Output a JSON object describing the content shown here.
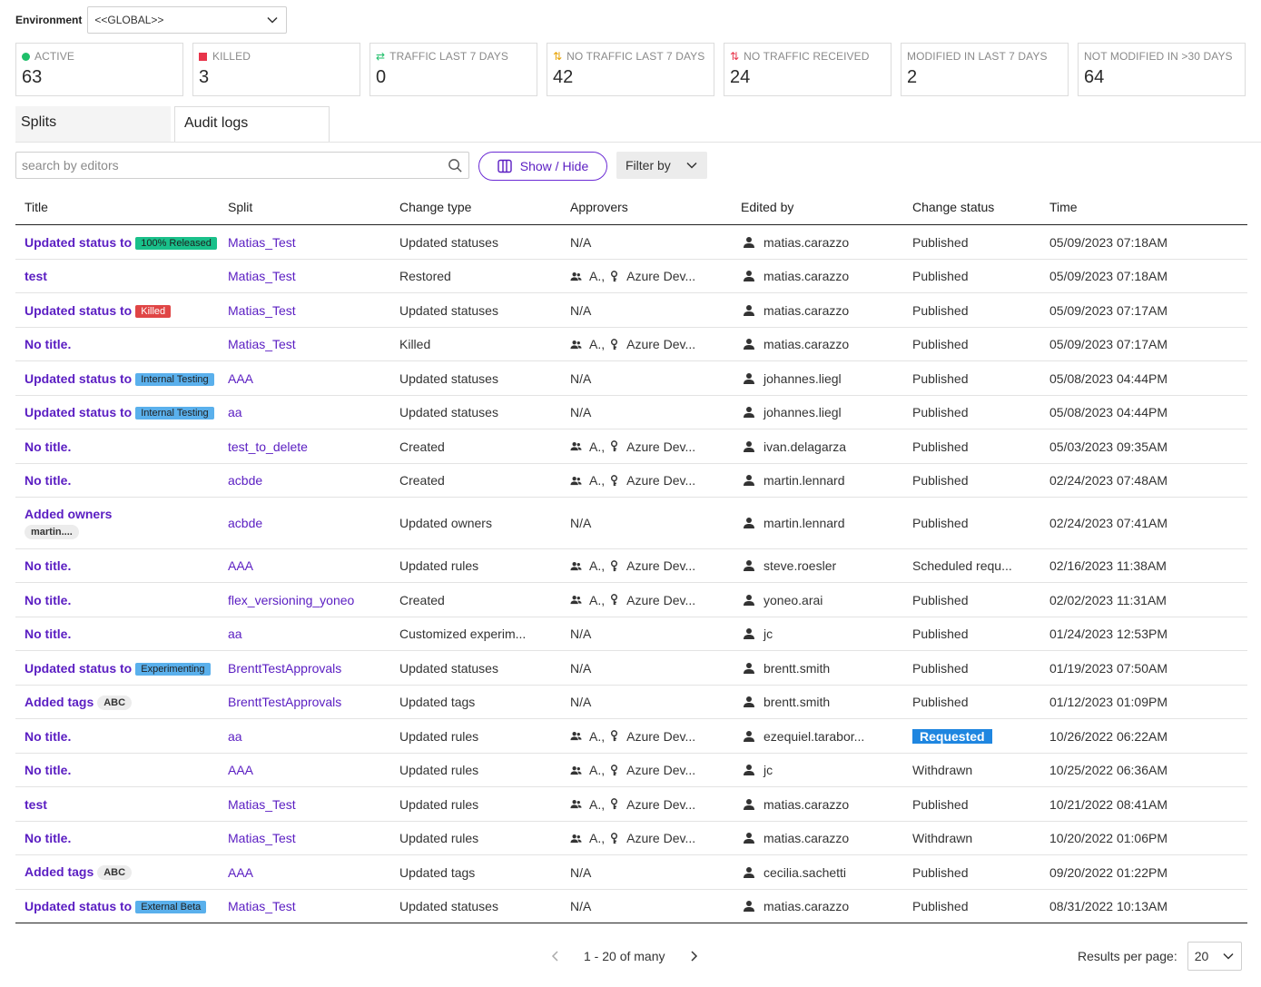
{
  "environment": {
    "label": "Environment",
    "value": "<<GLOBAL>>"
  },
  "stats": [
    {
      "label": "ACTIVE",
      "value": "63",
      "icon": "green-dot-icon",
      "color": "#1fbf6a"
    },
    {
      "label": "KILLED",
      "value": "3",
      "icon": "red-square-icon",
      "color": "#e8344a"
    },
    {
      "label": "TRAFFIC LAST 7 DAYS",
      "value": "0",
      "icon": "traffic-arrows-icon",
      "color": "#1fbf6a"
    },
    {
      "label": "NO TRAFFIC LAST 7 DAYS",
      "value": "42",
      "icon": "no-traffic-arrows-icon",
      "color": "#e8a100"
    },
    {
      "label": "NO TRAFFIC RECEIVED",
      "value": "24",
      "icon": "no-traffic-received-icon",
      "color": "#e8344a"
    },
    {
      "label": "MODIFIED IN LAST 7 DAYS",
      "value": "2"
    },
    {
      "label": "NOT MODIFIED IN >30 DAYS",
      "value": "64"
    }
  ],
  "tabs": [
    {
      "label": "Splits",
      "active": false
    },
    {
      "label": "Audit logs",
      "active": true
    }
  ],
  "toolbar": {
    "search_placeholder": "search by editors",
    "show_hide_label": "Show / Hide",
    "filter_label": "Filter by"
  },
  "table": {
    "headers": [
      "Title",
      "Split",
      "Change type",
      "Approvers",
      "Edited by",
      "Change status",
      "Time"
    ],
    "rows": [
      {
        "title": "Updated status to",
        "badge": "100% Released",
        "badge_kind": "released",
        "split": "Matias_Test",
        "change": "Updated statuses",
        "approvers": "N/A",
        "editor": "matias.carazzo",
        "status": "Published",
        "time": "05/09/2023 07:18AM"
      },
      {
        "title": "test",
        "split": "Matias_Test",
        "change": "Restored",
        "approver_a": "A.,",
        "approver_b": "Azure Dev...",
        "editor": "matias.carazzo",
        "status": "Published",
        "time": "05/09/2023 07:18AM"
      },
      {
        "title": "Updated status to",
        "badge": "Killed",
        "badge_kind": "killed",
        "split": "Matias_Test",
        "change": "Updated statuses",
        "approvers": "N/A",
        "editor": "matias.carazzo",
        "status": "Published",
        "time": "05/09/2023 07:17AM"
      },
      {
        "title": "No title.",
        "split": "Matias_Test",
        "change": "Killed",
        "approver_a": "A.,",
        "approver_b": "Azure Dev...",
        "editor": "matias.carazzo",
        "status": "Published",
        "time": "05/09/2023 07:17AM"
      },
      {
        "title": "Updated status to",
        "badge": "Internal Testing",
        "badge_kind": "blue",
        "split": "AAA",
        "change": "Updated statuses",
        "approvers": "N/A",
        "editor": "johannes.liegl",
        "status": "Published",
        "time": "05/08/2023 04:44PM"
      },
      {
        "title": "Updated status to",
        "badge": "Internal Testing",
        "badge_kind": "blue",
        "split": "aa",
        "change": "Updated statuses",
        "approvers": "N/A",
        "editor": "johannes.liegl",
        "status": "Published",
        "time": "05/08/2023 04:44PM"
      },
      {
        "title": "No title.",
        "split": "test_to_delete",
        "change": "Created",
        "approver_a": "A.,",
        "approver_b": "Azure Dev...",
        "editor": "ivan.delagarza",
        "status": "Published",
        "time": "05/03/2023 09:35AM"
      },
      {
        "title": "No title.",
        "split": "acbde",
        "change": "Created",
        "approver_a": "A.,",
        "approver_b": "Azure Dev...",
        "editor": "martin.lennard",
        "status": "Published",
        "time": "02/24/2023 07:48AM"
      },
      {
        "title": "Added owners",
        "sub_badge": "martin....",
        "split": "acbde",
        "change": "Updated owners",
        "approvers": "N/A",
        "editor": "martin.lennard",
        "status": "Published",
        "time": "02/24/2023 07:41AM",
        "tall": true
      },
      {
        "title": "No title.",
        "split": "AAA",
        "change": "Updated rules",
        "approver_a": "A.,",
        "approver_b": "Azure Dev...",
        "editor": "steve.roesler",
        "status": "Scheduled requ...",
        "time": "02/16/2023 11:38AM"
      },
      {
        "title": "No title.",
        "split": "flex_versioning_yoneo",
        "change": "Created",
        "approver_a": "A.,",
        "approver_b": "Azure Dev...",
        "editor": "yoneo.arai",
        "status": "Published",
        "time": "02/02/2023 11:31AM"
      },
      {
        "title": "No title.",
        "split": "aa",
        "change": "Customized experim...",
        "approvers": "N/A",
        "editor": "jc",
        "status": "Published",
        "time": "01/24/2023 12:53PM"
      },
      {
        "title": "Updated status to",
        "badge": "Experimenting",
        "badge_kind": "blue",
        "split": "BrenttTestApprovals",
        "change": "Updated statuses",
        "approvers": "N/A",
        "editor": "brentt.smith",
        "status": "Published",
        "time": "01/19/2023 07:50AM"
      },
      {
        "title": "Added tags",
        "badge": "ABC",
        "badge_kind": "gray",
        "split": "BrenttTestApprovals",
        "change": "Updated tags",
        "approvers": "N/A",
        "editor": "brentt.smith",
        "status": "Published",
        "time": "01/12/2023 01:09PM"
      },
      {
        "title": "No title.",
        "split": "aa",
        "change": "Updated rules",
        "approver_a": "A.,",
        "approver_b": "Azure Dev...",
        "editor": "ezequiel.tarabor...",
        "status": "Requested",
        "status_kind": "requested",
        "time": "10/26/2022 06:22AM"
      },
      {
        "title": "No title.",
        "split": "AAA",
        "change": "Updated rules",
        "approver_a": "A.,",
        "approver_b": "Azure Dev...",
        "editor": "jc",
        "status": "Withdrawn",
        "time": "10/25/2022 06:36AM"
      },
      {
        "title": "test",
        "split": "Matias_Test",
        "change": "Updated rules",
        "approver_a": "A.,",
        "approver_b": "Azure Dev...",
        "editor": "matias.carazzo",
        "status": "Published",
        "time": "10/21/2022 08:41AM"
      },
      {
        "title": "No title.",
        "split": "Matias_Test",
        "change": "Updated rules",
        "approver_a": "A.,",
        "approver_b": "Azure Dev...",
        "editor": "matias.carazzo",
        "status": "Withdrawn",
        "time": "10/20/2022 01:06PM"
      },
      {
        "title": "Added tags",
        "badge": "ABC",
        "badge_kind": "gray",
        "split": "AAA",
        "change": "Updated tags",
        "approvers": "N/A",
        "editor": "cecilia.sachetti",
        "status": "Published",
        "time": "09/20/2022 01:22PM"
      },
      {
        "title": "Updated status to",
        "badge": "External Beta",
        "badge_kind": "blue",
        "split": "Matias_Test",
        "change": "Updated statuses",
        "approvers": "N/A",
        "editor": "matias.carazzo",
        "status": "Published",
        "time": "08/31/2022 10:13AM"
      }
    ]
  },
  "pagination": {
    "range": "1 - 20 of many",
    "results_label": "Results per page:",
    "per_page": "20"
  }
}
